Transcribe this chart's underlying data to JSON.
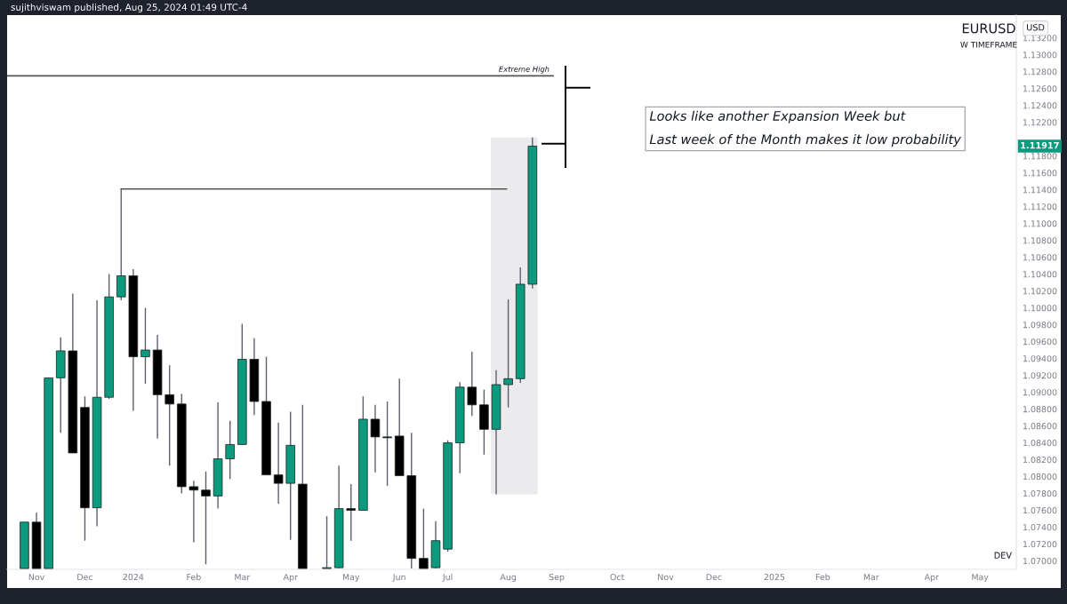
{
  "chart_data": {
    "type": "candlestick",
    "title": "EURUSD",
    "subtitle": "W TIMEFRAME",
    "ylabel": "USD",
    "x": [
      "2023-10-30",
      "2023-11-06",
      "2023-11-13",
      "2023-11-20",
      "2023-11-27",
      "2023-12-04",
      "2023-12-11",
      "2023-12-18",
      "2023-12-25",
      "2024-01-01",
      "2024-01-08",
      "2024-01-15",
      "2024-01-22",
      "2024-01-29",
      "2024-02-05",
      "2024-02-12",
      "2024-02-19",
      "2024-02-26",
      "2024-03-04",
      "2024-03-11",
      "2024-03-18",
      "2024-03-25",
      "2024-04-01",
      "2024-04-08",
      "2024-04-22",
      "2024-04-29",
      "2024-05-06",
      "2024-05-13",
      "2024-05-20",
      "2024-05-27",
      "2024-06-03",
      "2024-06-10",
      "2024-06-17",
      "2024-06-24",
      "2024-07-01",
      "2024-07-08",
      "2024-07-15",
      "2024-07-22",
      "2024-07-29",
      "2024-08-05",
      "2024-08-12",
      "2024-08-19"
    ],
    "ohlc": [
      [
        1.0691,
        1.0746,
        1.0691,
        1.0746
      ],
      [
        1.0746,
        1.0757,
        1.0691,
        1.0691
      ],
      [
        1.0691,
        1.0917,
        1.0691,
        1.0917
      ],
      [
        1.0917,
        1.0965,
        1.0852,
        1.0949
      ],
      [
        1.0949,
        1.1017,
        1.0828,
        1.0828
      ],
      [
        1.0882,
        1.0895,
        1.0724,
        1.0763
      ],
      [
        1.0763,
        1.1009,
        1.0741,
        1.0894
      ],
      [
        1.0894,
        1.104,
        1.0892,
        1.1013
      ],
      [
        1.1013,
        1.1141,
        1.1009,
        1.1038
      ],
      [
        1.1038,
        1.1046,
        1.0878,
        1.0942
      ],
      [
        1.0942,
        1.1,
        1.091,
        1.095
      ],
      [
        1.095,
        1.0968,
        1.0845,
        1.0897
      ],
      [
        1.0897,
        1.0932,
        1.0813,
        1.0886
      ],
      [
        1.0886,
        1.0898,
        1.078,
        1.0788
      ],
      [
        1.0788,
        1.0795,
        1.0722,
        1.0784
      ],
      [
        1.0784,
        1.0806,
        1.0696,
        1.0777
      ],
      [
        1.0777,
        1.0888,
        1.0762,
        1.0821
      ],
      [
        1.0821,
        1.0866,
        1.0797,
        1.0838
      ],
      [
        1.0838,
        1.0981,
        1.0838,
        1.0939
      ],
      [
        1.0939,
        1.0964,
        1.0873,
        1.0889
      ],
      [
        1.0889,
        1.0942,
        1.0802,
        1.0802
      ],
      [
        1.0802,
        1.0864,
        1.0768,
        1.0792
      ],
      [
        1.0792,
        1.0877,
        1.0725,
        1.0837
      ],
      [
        1.0791,
        1.0885,
        1.0691,
        1.0691
      ],
      [
        1.0691,
        1.0753,
        1.0691,
        1.0692
      ],
      [
        1.0692,
        1.0813,
        1.0691,
        1.0762
      ],
      [
        1.0762,
        1.0791,
        1.0724,
        1.076
      ],
      [
        1.076,
        1.0895,
        1.076,
        1.0868
      ],
      [
        1.0868,
        1.0885,
        1.0805,
        1.0847
      ],
      [
        1.0847,
        1.0889,
        1.0789,
        1.0846
      ],
      [
        1.0848,
        1.0916,
        1.0801,
        1.0801
      ],
      [
        1.0801,
        1.0852,
        1.0691,
        1.0703
      ],
      [
        1.0703,
        1.0762,
        1.0691,
        1.0691
      ],
      [
        1.0692,
        1.0747,
        1.0691,
        1.0724
      ],
      [
        1.0714,
        1.0843,
        1.0711,
        1.084
      ],
      [
        1.084,
        1.0912,
        1.0804,
        1.0906
      ],
      [
        1.0906,
        1.0948,
        1.0872,
        1.0885
      ],
      [
        1.0885,
        1.0903,
        1.0826,
        1.0856
      ],
      [
        1.0856,
        1.0926,
        1.0779,
        1.0909
      ],
      [
        1.0909,
        1.101,
        1.0882,
        1.0916
      ],
      [
        1.0916,
        1.1048,
        1.0911,
        1.1028
      ],
      [
        1.1028,
        1.1202,
        1.1023,
        1.11917
      ]
    ],
    "colors": [
      "#0c9a7f",
      "#000000",
      "#0c9a7f",
      "#0c9a7f",
      "#000000",
      "#000000",
      "#0c9a7f",
      "#0c9a7f",
      "#0c9a7f",
      "#000000",
      "#0c9a7f",
      "#000000",
      "#000000",
      "#000000",
      "#000000",
      "#000000",
      "#0c9a7f",
      "#0c9a7f",
      "#0c9a7f",
      "#000000",
      "#000000",
      "#000000",
      "#0c9a7f",
      "#000000",
      "#0c9a7f",
      "#0c9a7f",
      "#000000",
      "#0c9a7f",
      "#000000",
      "#000000",
      "#000000",
      "#000000",
      "#000000",
      "#0c9a7f",
      "#0c9a7f",
      "#0c9a7f",
      "#000000",
      "#000000",
      "#0c9a7f",
      "#0c9a7f",
      "#0c9a7f",
      "#0c9a7f"
    ],
    "series": [
      {
        "type": "line",
        "color": "#555555",
        "x": [
          "2023-10-20",
          "2024-08-31"
        ],
        "values": [
          1.1275,
          1.1275
        ]
      },
      {
        "type": "line",
        "color": "#555555",
        "x": [
          "2023-12-25",
          "2024-08-04"
        ],
        "values": [
          1.1141,
          1.1141
        ]
      }
    ],
    "bands": [
      {
        "axis": "x",
        "from": "2024-07-26",
        "to": "2024-08-22",
        "color": "#ebebed"
      }
    ],
    "annotations": [
      "sujithviswam published, Aug 25, 2024 01:49 UTC-4",
      "Looks like another Expansion Week but\nLast week of the Month makes it low probability",
      "DEV",
      {
        "text": "Extreme High",
        "x": "2024-08-31",
        "y": 1.1275
      },
      "1.11917"
    ],
    "xlim": [
      "2023-10-20",
      "2025-05-26"
    ],
    "xticks": [
      {
        "value": "2023-11-06",
        "label": "Nov"
      },
      {
        "value": "2023-12-04",
        "label": "Dec"
      },
      {
        "value": "2024-01-01",
        "label": "2024"
      },
      {
        "value": "2024-02-05",
        "label": "Feb"
      },
      {
        "value": "2024-03-04",
        "label": "Mar"
      },
      {
        "value": "2024-04-01",
        "label": "Apr"
      },
      {
        "value": "2024-05-06",
        "label": "May"
      },
      {
        "value": "2024-06-03",
        "label": "Jun"
      },
      {
        "value": "2024-07-01",
        "label": "Jul"
      },
      {
        "value": "2024-08-05",
        "label": "Aug"
      },
      {
        "value": "2024-09-02",
        "label": "Sep"
      },
      {
        "value": "2024-10-07",
        "label": "Oct"
      },
      {
        "value": "2024-11-04",
        "label": "Nov"
      },
      {
        "value": "2024-12-02",
        "label": "Dec"
      },
      {
        "value": "2025-01-06",
        "label": "2025"
      },
      {
        "value": "2025-02-03",
        "label": "Feb"
      },
      {
        "value": "2025-03-03",
        "label": "Mar"
      },
      {
        "value": "2025-04-07",
        "label": "Apr"
      },
      {
        "value": "2025-05-05",
        "label": "May"
      }
    ],
    "ylim": [
      1.069,
      1.1347
    ],
    "yticks": [
      {
        "value": 1.07,
        "label": "1.07000"
      },
      {
        "value": 1.072,
        "label": "1.07200"
      },
      {
        "value": 1.074,
        "label": "1.07400"
      },
      {
        "value": 1.076,
        "label": "1.07600"
      },
      {
        "value": 1.078,
        "label": "1.07800"
      },
      {
        "value": 1.08,
        "label": "1.08000"
      },
      {
        "value": 1.082,
        "label": "1.08200"
      },
      {
        "value": 1.084,
        "label": "1.08400"
      },
      {
        "value": 1.086,
        "label": "1.08600"
      },
      {
        "value": 1.088,
        "label": "1.08800"
      },
      {
        "value": 1.09,
        "label": "1.09000"
      },
      {
        "value": 1.092,
        "label": "1.09200"
      },
      {
        "value": 1.094,
        "label": "1.09400"
      },
      {
        "value": 1.096,
        "label": "1.09600"
      },
      {
        "value": 1.098,
        "label": "1.09800"
      },
      {
        "value": 1.1,
        "label": "1.10000"
      },
      {
        "value": 1.102,
        "label": "1.10200"
      },
      {
        "value": 1.104,
        "label": "1.10400"
      },
      {
        "value": 1.106,
        "label": "1.10600"
      },
      {
        "value": 1.108,
        "label": "1.10800"
      },
      {
        "value": 1.11,
        "label": "1.11000"
      },
      {
        "value": 1.112,
        "label": "1.11200"
      },
      {
        "value": 1.114,
        "label": "1.11400"
      },
      {
        "value": 1.116,
        "label": "1.11600"
      },
      {
        "value": 1.118,
        "label": "1.11800"
      },
      {
        "value": 1.122,
        "label": "1.12200"
      },
      {
        "value": 1.124,
        "label": "1.12400"
      },
      {
        "value": 1.126,
        "label": "1.12600"
      },
      {
        "value": 1.128,
        "label": "1.12800"
      },
      {
        "value": 1.13,
        "label": "1.13000"
      },
      {
        "value": 1.132,
        "label": "1.13200"
      }
    ]
  }
}
